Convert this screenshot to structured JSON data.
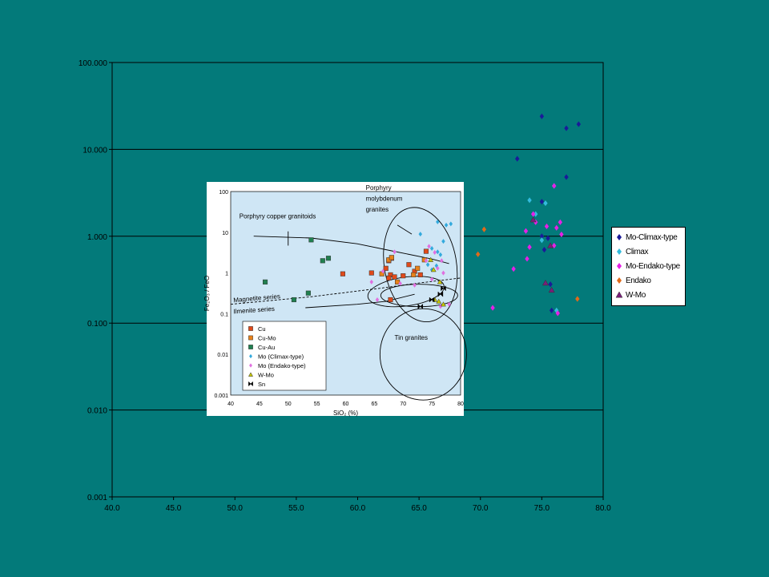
{
  "chart_data": [
    {
      "type": "scatter",
      "x_scale": "linear",
      "y_scale": "log",
      "xlim": [
        40,
        80
      ],
      "ylim": [
        0.001,
        100
      ],
      "x_ticks": [
        "40.0",
        "45.0",
        "50.0",
        "55.0",
        "60.0",
        "65.0",
        "70.0",
        "75.0",
        "80.0"
      ],
      "y_ticks": [
        "0.001",
        "0.010",
        "0.100",
        "1.000",
        "10.000",
        "100.000"
      ],
      "grid": "horizontal",
      "legend_position": "right",
      "series": [
        {
          "name": "Mo-Climax-type",
          "marker": "diamond",
          "color": "#1a1a99",
          "points": [
            [
              75.0,
              24.0
            ],
            [
              77.0,
              17.5
            ],
            [
              78.0,
              19.5
            ],
            [
              73.0,
              7.8
            ],
            [
              77.0,
              4.8
            ],
            [
              75.0,
              2.5
            ],
            [
              75.0,
              1.0
            ],
            [
              75.5,
              0.95
            ],
            [
              75.2,
              0.7
            ],
            [
              75.7,
              0.28
            ],
            [
              75.8,
              0.14
            ]
          ]
        },
        {
          "name": "Climax",
          "marker": "diamond",
          "color": "#33bbdd",
          "points": [
            [
              76.0,
              3.8
            ],
            [
              74.0,
              2.6
            ],
            [
              75.3,
              2.4
            ],
            [
              74.5,
              1.8
            ],
            [
              75.0,
              0.9
            ],
            [
              76.2,
              0.14
            ]
          ]
        },
        {
          "name": "Mo-Endako-type",
          "marker": "diamond",
          "color": "#e620e6",
          "points": [
            [
              76.0,
              3.8
            ],
            [
              74.3,
              1.8
            ],
            [
              74.5,
              1.45
            ],
            [
              76.5,
              1.45
            ],
            [
              73.7,
              1.15
            ],
            [
              75.4,
              1.3
            ],
            [
              76.2,
              1.25
            ],
            [
              76.6,
              1.05
            ],
            [
              74.0,
              0.75
            ],
            [
              73.8,
              0.55
            ],
            [
              76.0,
              0.78
            ],
            [
              72.7,
              0.42
            ],
            [
              71.0,
              0.15
            ],
            [
              76.3,
              0.13
            ]
          ]
        },
        {
          "name": "Endako",
          "marker": "diamond",
          "color": "#e06a1a",
          "points": [
            [
              70.3,
              1.2
            ],
            [
              69.8,
              0.62
            ],
            [
              77.9,
              0.19
            ]
          ]
        },
        {
          "name": "W-Mo",
          "marker": "triangle",
          "color": "#7a1e7a",
          "points": [
            [
              74.3,
              1.55
            ],
            [
              75.7,
              0.78
            ],
            [
              75.3,
              0.29
            ],
            [
              75.8,
              0.24
            ]
          ]
        }
      ]
    },
    {
      "type": "scatter",
      "x_scale": "linear",
      "y_scale": "log",
      "xlim": [
        40,
        80
      ],
      "ylim": [
        0.001,
        100
      ],
      "xlabel": "SiO₂ (%)",
      "ylabel": "Fe₂O₃ / FeO",
      "x_ticks": [
        "40",
        "45",
        "50",
        "55",
        "60",
        "65",
        "70",
        "75",
        "80"
      ],
      "y_ticks": [
        "0.001",
        "0.01",
        "0.1",
        "1",
        "10",
        "100"
      ],
      "legend_position": "bottom-left",
      "annotations": [
        "Porphyry copper granitoids",
        "Porphyry",
        "molybdenum",
        "granites",
        "Magnetite series",
        "Ilmenite series",
        "Tin granites"
      ],
      "series": [
        {
          "name": "Cu",
          "marker": "square",
          "color": "#e04a1a",
          "points": [
            [
              59.5,
              0.95
            ],
            [
              64.5,
              1.0
            ],
            [
              67.5,
              2.0
            ],
            [
              68.0,
              2.3
            ],
            [
              67.0,
              1.3
            ],
            [
              67.8,
              0.9
            ],
            [
              68.5,
              0.8
            ],
            [
              70.0,
              0.85
            ],
            [
              67.5,
              0.75
            ],
            [
              71.0,
              1.6
            ],
            [
              72.0,
              1.1
            ],
            [
              73.0,
              0.9
            ],
            [
              74.0,
              3.4
            ],
            [
              67.8,
              0.22
            ]
          ]
        },
        {
          "name": "Cu-Mo",
          "marker": "square",
          "color": "#e8821a",
          "points": [
            [
              67.5,
              2.1
            ],
            [
              68.0,
              2.4
            ],
            [
              66.3,
              0.95
            ],
            [
              69.0,
              0.6
            ],
            [
              71.8,
              0.9
            ],
            [
              72.5,
              1.3
            ],
            [
              73.7,
              2.1
            ]
          ]
        },
        {
          "name": "Cu-Au",
          "marker": "square",
          "color": "#208050",
          "points": [
            [
              54.0,
              6.5
            ],
            [
              56.0,
              2.0
            ],
            [
              57.0,
              2.3
            ],
            [
              46.0,
              0.6
            ],
            [
              51.0,
              0.22
            ],
            [
              53.5,
              0.32
            ]
          ]
        },
        {
          "name": "Mo (Climax-type)",
          "marker": "diamond",
          "color": "#33aadd",
          "points": [
            [
              76.0,
              18.0
            ],
            [
              77.5,
              15.0
            ],
            [
              78.3,
              16.0
            ],
            [
              73.0,
              9.0
            ],
            [
              77.0,
              6.0
            ],
            [
              75.0,
              4.0
            ],
            [
              76.0,
              3.3
            ],
            [
              76.5,
              2.8
            ],
            [
              74.3,
              1.6
            ],
            [
              75.8,
              1.5
            ],
            [
              75.0,
              1.2
            ]
          ]
        },
        {
          "name": "Mo (Endako-type)",
          "marker": "diamond",
          "color": "#e070e0",
          "points": [
            [
              68.5,
              3.3
            ],
            [
              74.5,
              4.5
            ],
            [
              75.5,
              3.2
            ],
            [
              74.0,
              2.0
            ],
            [
              76.7,
              2.0
            ],
            [
              76.0,
              1.3
            ],
            [
              66.5,
              1.1
            ],
            [
              75.0,
              0.7
            ],
            [
              64.5,
              0.6
            ],
            [
              77.0,
              1.0
            ],
            [
              69.5,
              0.55
            ],
            [
              72.0,
              0.5
            ],
            [
              76.5,
              0.15
            ],
            [
              78.0,
              0.17
            ],
            [
              65.5,
              0.22
            ]
          ]
        },
        {
          "name": "W-Mo",
          "marker": "triangle",
          "color": "#c8c800",
          "points": [
            [
              75.5,
              0.22
            ],
            [
              76.2,
              0.2
            ],
            [
              77.0,
              0.17
            ],
            [
              74.8,
              2.1
            ],
            [
              75.3,
              1.2
            ],
            [
              76.4,
              0.6
            ]
          ]
        },
        {
          "name": "Sn",
          "marker": "bowtie",
          "color": "#000000",
          "points": [
            [
              77.0,
              0.42
            ],
            [
              75.0,
              0.22
            ],
            [
              76.5,
              0.3
            ],
            [
              73.0,
              0.15
            ]
          ]
        }
      ]
    }
  ]
}
